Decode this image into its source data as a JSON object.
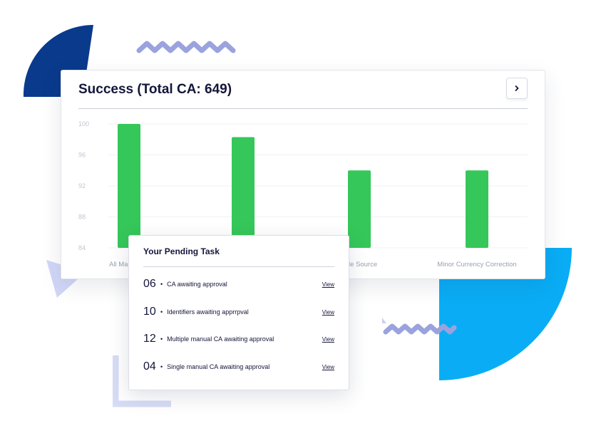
{
  "colors": {
    "bar": "#35c759",
    "accent_navy": "#0a3a8c",
    "accent_blue": "#0aadf5",
    "accent_lavender": "#c9d0f3",
    "zigzag": "#9aa3de"
  },
  "card": {
    "title": "Success (Total CA: 649)",
    "next_icon": "chevron-right-icon"
  },
  "chart_data": {
    "type": "bar",
    "categories": [
      "All Ma",
      "",
      "le Source",
      "Minor Currency Correction"
    ],
    "values": [
      100,
      98.3,
      94,
      94
    ],
    "yticks": [
      100,
      96,
      92,
      88,
      84
    ],
    "ylim": [
      84,
      100
    ],
    "grid": true,
    "title": "",
    "xlabel": "",
    "ylabel": ""
  },
  "pending": {
    "title": "Your Pending Task",
    "tasks": [
      {
        "count": "06",
        "label": "CA awaiting approval",
        "link": "View"
      },
      {
        "count": "10",
        "label": "Identifiers awaiting apprrpval",
        "link": "View"
      },
      {
        "count": "12",
        "label": "Multiple manual CA awaiting approval",
        "link": "View"
      },
      {
        "count": "04",
        "label": "Single manual CA awaiting approval",
        "link": "View"
      }
    ]
  }
}
